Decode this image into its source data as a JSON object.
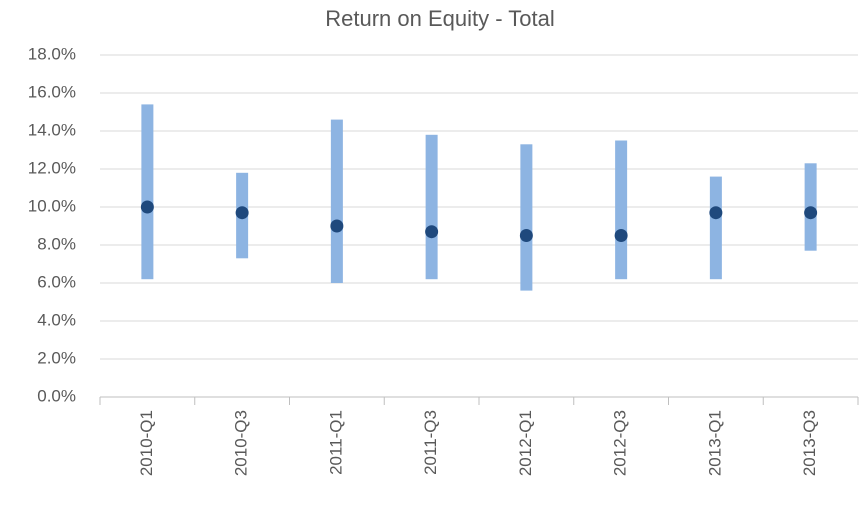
{
  "chart_data": {
    "type": "range",
    "title": "Return on Equity - Total",
    "categories": [
      "2010-Q1",
      "2010-Q3",
      "2011-Q1",
      "2011-Q3",
      "2012-Q1",
      "2012-Q3",
      "2013-Q1",
      "2013-Q3"
    ],
    "low": [
      6.2,
      7.3,
      6.0,
      6.2,
      5.6,
      6.2,
      6.2,
      7.7
    ],
    "high": [
      15.4,
      11.8,
      14.6,
      13.8,
      13.3,
      13.5,
      11.6,
      12.3
    ],
    "values": [
      10.0,
      9.7,
      9.0,
      8.7,
      8.5,
      8.5,
      9.7,
      9.7
    ],
    "range_color": "#8db4e2",
    "color": "#1f497d",
    "ylim": [
      0,
      18
    ],
    "yticks": [
      {
        "value": 0,
        "label": "0.0%"
      },
      {
        "value": 2,
        "label": "2.0%"
      },
      {
        "value": 4,
        "label": "4.0%"
      },
      {
        "value": 6,
        "label": "6.0%"
      },
      {
        "value": 8,
        "label": "8.0%"
      },
      {
        "value": 10,
        "label": "10.0%"
      },
      {
        "value": 12,
        "label": "12.0%"
      },
      {
        "value": 14,
        "label": "14.0%"
      },
      {
        "value": 16,
        "label": "16.0%"
      },
      {
        "value": 18,
        "label": "18.0%"
      }
    ],
    "grid": true
  }
}
